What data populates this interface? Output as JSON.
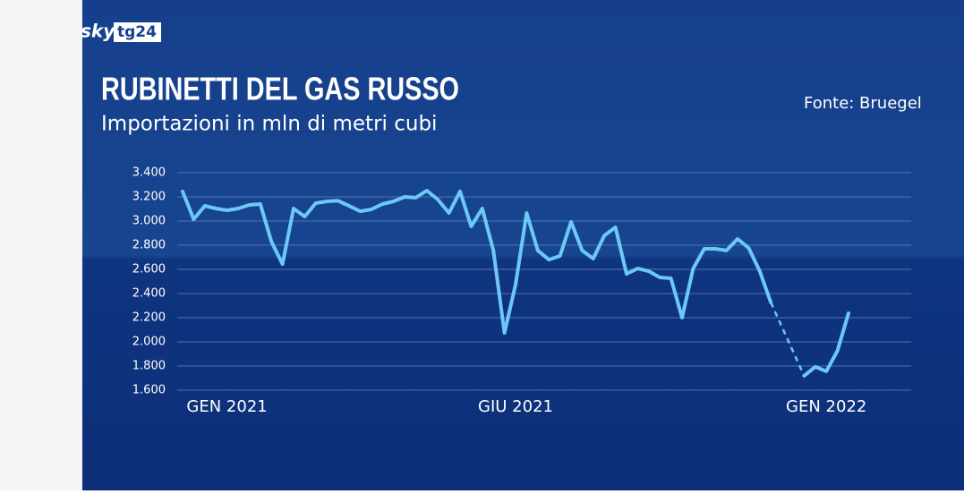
{
  "logo": {
    "brand": "sky",
    "channel": "tg24"
  },
  "chart_data": {
    "type": "line",
    "title": "RUBINETTI DEL GAS RUSSO",
    "subtitle": "Importazioni in mln di metri cubi",
    "source": "Fonte: Bruegel",
    "categories": [
      null,
      null,
      null,
      null,
      "GEN 2021",
      null,
      null,
      null,
      null,
      null,
      null,
      null,
      null,
      null,
      null,
      null,
      null,
      null,
      null,
      null,
      null,
      null,
      null,
      null,
      null,
      null,
      null,
      null,
      null,
      null,
      "GIU 2021",
      null,
      null,
      null,
      null,
      null,
      null,
      null,
      null,
      null,
      null,
      null,
      null,
      null,
      null,
      null,
      null,
      null,
      null,
      null,
      null,
      null,
      null,
      null,
      null,
      null,
      null,
      null,
      "GEN 2022",
      null,
      null
    ],
    "series": [
      {
        "name": "Importazioni",
        "color": "#6cc8f6",
        "values": [
          3245,
          3015,
          3126,
          3104,
          3089,
          3104,
          3133,
          3141,
          2830,
          2644,
          3104,
          3037,
          3148,
          3163,
          3168,
          3126,
          3081,
          3096,
          3141,
          3163,
          3200,
          3193,
          3252,
          3178,
          3067,
          3245,
          2956,
          3104,
          2756,
          2074,
          2474,
          3067,
          2756,
          2681,
          2711,
          2993,
          2756,
          2689,
          2881,
          2948,
          2563,
          2607,
          2585,
          2533,
          2526,
          2200,
          2607,
          2770,
          2770,
          2756,
          2852,
          2778,
          2585,
          2326,
          null,
          null,
          1719,
          1793,
          1756,
          1926,
          2237
        ]
      }
    ],
    "ylim": [
      1600,
      3400
    ],
    "yticks": [
      {
        "value": 1600,
        "label": "1.600"
      },
      {
        "value": 1800,
        "label": "1.800"
      },
      {
        "value": 2000,
        "label": "2.000"
      },
      {
        "value": 2200,
        "label": "2.200"
      },
      {
        "value": 2400,
        "label": "2.400"
      },
      {
        "value": 2600,
        "label": "2.600"
      },
      {
        "value": 2800,
        "label": "2.800"
      },
      {
        "value": 3000,
        "label": "3.000"
      },
      {
        "value": 3200,
        "label": "3.200"
      },
      {
        "value": 3400,
        "label": "3.400"
      }
    ],
    "grid": true
  }
}
